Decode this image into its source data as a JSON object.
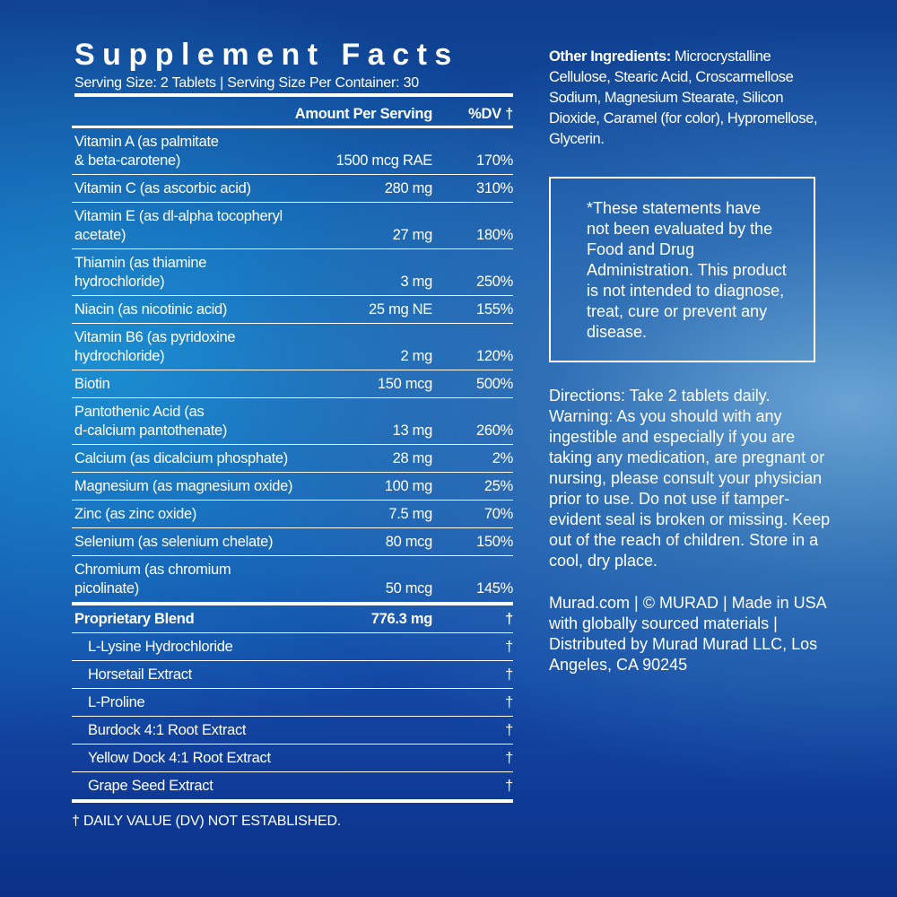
{
  "facts": {
    "title": "Supplement Facts",
    "serving": "Serving Size: 2 Tablets | Serving Size Per Container: 30",
    "header": {
      "amount": "Amount Per Serving",
      "dv": "%DV †"
    },
    "rows": [
      {
        "name": [
          "Vitamin A (as palmitate",
          "& beta-carotene)"
        ],
        "amount": "1500 mcg RAE",
        "dv": "170%"
      },
      {
        "name": [
          "Vitamin C (as ascorbic acid)"
        ],
        "amount": "280 mg",
        "dv": "310%"
      },
      {
        "name": [
          "Vitamin E (as dl-alpha tocopheryl acetate)"
        ],
        "amount": "27 mg",
        "dv": "180%"
      },
      {
        "name": [
          "Thiamin (as thiamine hydrochloride)"
        ],
        "amount": "3 mg",
        "dv": "250%"
      },
      {
        "name": [
          "Niacin (as nicotinic acid)"
        ],
        "amount": "25 mg NE",
        "dv": "155%"
      },
      {
        "name": [
          "Vitamin B6 (as pyridoxine hydrochloride)"
        ],
        "amount": "2 mg",
        "dv": "120%"
      },
      {
        "name": [
          "Biotin"
        ],
        "amount": "150 mcg",
        "dv": "500%"
      },
      {
        "name": [
          "Pantothenic Acid (as",
          "d-calcium pantothenate)"
        ],
        "amount": "13 mg",
        "dv": "260%"
      },
      {
        "name": [
          "Calcium (as dicalcium phosphate)"
        ],
        "amount": "28 mg",
        "dv": "2%"
      },
      {
        "name": [
          "Magnesium (as magnesium oxide)"
        ],
        "amount": "100 mg",
        "dv": "25%"
      },
      {
        "name": [
          "Zinc (as zinc oxide)"
        ],
        "amount": "7.5 mg",
        "dv": "70%"
      },
      {
        "name": [
          "Selenium (as selenium chelate)"
        ],
        "amount": "80 mcg",
        "dv": "150%"
      },
      {
        "name": [
          "Chromium (as chromium picolinate)"
        ],
        "amount": "50 mcg",
        "dv": "145%"
      }
    ],
    "blend": {
      "name": "Proprietary Blend",
      "amount": "776.3 mg",
      "dv": "†",
      "items": [
        {
          "name": "L-Lysine Hydrochloride",
          "dv": "†"
        },
        {
          "name": "Horsetail Extract",
          "dv": "†"
        },
        {
          "name": "L-Proline",
          "dv": "†"
        },
        {
          "name": "Burdock 4:1 Root Extract",
          "dv": "†"
        },
        {
          "name": "Yellow Dock 4:1 Root Extract",
          "dv": "†"
        },
        {
          "name": "Grape Seed Extract",
          "dv": "†"
        }
      ]
    },
    "footnote": "† DAILY VALUE (DV) NOT ESTABLISHED."
  },
  "other_ingredients": {
    "label": "Other Ingredients:",
    "text": "Microcrystalline Cellulose, Stearic Acid, Croscarmellose Sodium, Magnesium Stearate, Silicon Dioxide, Caramel (for color), Hypromellose, Glycerin."
  },
  "disclaimer": "*These statements have not been evaluated by the Food and Drug Administration. This product is not intended to diagnose, treat, cure or prevent any disease.",
  "directions": "Directions: Take 2 tablets daily. Warning: As you should with any ingestible and especially if you are taking any medication, are pregnant or nursing, please consult your physician prior to use. Do not use if tamper-evident seal is broken or missing. Keep out of the reach of children. Store in a cool, dry place.",
  "company": "Murad.com | © MURAD | Made in USA with globally sourced materials | Distributed by Murad Murad LLC, Los Angeles, CA 90245"
}
